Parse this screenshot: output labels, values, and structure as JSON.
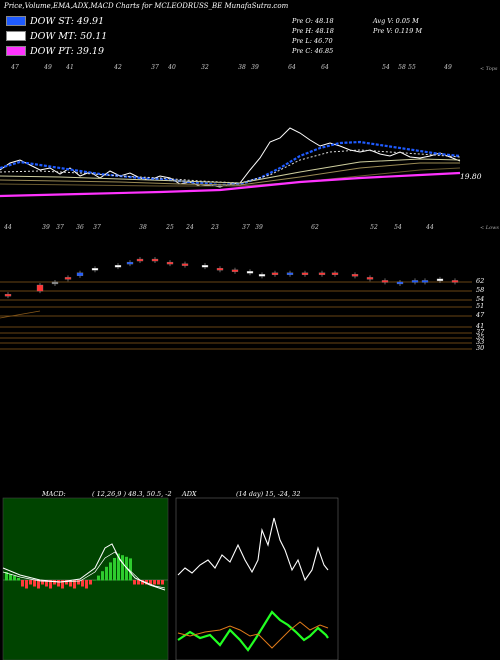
{
  "title": "Price,Volume,EMA,ADX,MACD Charts for MCLEODRUSS_BE MunafaSutra.com",
  "legend": [
    {
      "label": "DOW ST: 49.91",
      "color": "#1f5bff"
    },
    {
      "label": "DOW MT: 50.11",
      "color": "#ffffff"
    },
    {
      "label": "DOW PT: 39.19",
      "color": "#ff33ff"
    }
  ],
  "info": {
    "o": "Pre  O: 48.18",
    "h": "Pre  H: 48.18",
    "l": "Pre  L: 46.70",
    "c": "Pre  C: 46.85",
    "avgv": "Avg V: 0.05 M",
    "prev": "Pre  V: 0.119 M"
  },
  "price_top_labels": [
    "47",
    "49",
    "41",
    "42",
    "37",
    "40",
    "32",
    "38",
    "39",
    "64",
    "64",
    "54",
    "58",
    "55",
    "49"
  ],
  "price_bottom_labels": [
    "44",
    "39",
    "37",
    "36",
    "37",
    "38",
    "25",
    "24",
    "23",
    "37",
    "39",
    "62",
    "52",
    "54",
    "44"
  ],
  "corner_top": "< Tops",
  "corner_bottom": "< Lows",
  "last_value": "19.80",
  "level_labels": [
    "62",
    "58",
    "54",
    "51",
    "47",
    "41",
    "37",
    "35",
    "33",
    "30"
  ],
  "macd": {
    "label": "MACD:",
    "params": "( 12,26,9 ) 48.3, 50.5, -2"
  },
  "adx": {
    "label": "ADX",
    "params": "(14  day) 15,  -24,  32"
  },
  "chart_data": {
    "type": "line",
    "note_series": [
      "price",
      "short_ema",
      "long_ema",
      "pt_line"
    ],
    "x": [
      0,
      1,
      2,
      3,
      4,
      5,
      6,
      7,
      8,
      9,
      10,
      11,
      12,
      13,
      14,
      15,
      16,
      17,
      18,
      19,
      20,
      21,
      22,
      23,
      24,
      25,
      26,
      27,
      28,
      29
    ],
    "series": [
      {
        "name": "DOW ST",
        "color": "#1f5bff"
      },
      {
        "name": "DOW MT",
        "color": "#ffffff"
      },
      {
        "name": "DOW PT",
        "color": "#ff33ff"
      }
    ],
    "candles": [
      {
        "o": 41,
        "c": 41,
        "color": "#ff3333"
      },
      {
        "o": 47,
        "c": 43,
        "color": "#ff3333"
      },
      {
        "o": 49,
        "c": 49,
        "color": "#888888"
      },
      {
        "o": 51,
        "c": 52,
        "color": "#ff3333"
      },
      {
        "o": 53,
        "c": 55,
        "color": "#1f5bff"
      },
      {
        "o": 58,
        "c": 58,
        "color": "#ffffff"
      },
      {
        "o": 59,
        "c": 60,
        "color": "#ffffff"
      },
      {
        "o": 62,
        "c": 61,
        "color": "#1f5bff"
      },
      {
        "o": 64,
        "c": 64,
        "color": "#ff3333"
      },
      {
        "o": 64,
        "c": 64,
        "color": "#ff3333"
      },
      {
        "o": 62,
        "c": 62,
        "color": "#ff3333"
      },
      {
        "o": 61,
        "c": 61,
        "color": "#ff3333"
      },
      {
        "o": 60,
        "c": 60,
        "color": "#ffffff"
      },
      {
        "o": 58,
        "c": 58,
        "color": "#ff3333"
      },
      {
        "o": 57,
        "c": 57,
        "color": "#ff3333"
      },
      {
        "o": 56,
        "c": 55,
        "color": "#ffffff"
      },
      {
        "o": 54,
        "c": 54,
        "color": "#ffffff"
      },
      {
        "o": 54,
        "c": 55,
        "color": "#ff3333"
      },
      {
        "o": 55,
        "c": 55,
        "color": "#1f5bff"
      },
      {
        "o": 55,
        "c": 55,
        "color": "#ff3333"
      },
      {
        "o": 54,
        "c": 55,
        "color": "#ff3333"
      },
      {
        "o": 55,
        "c": 54,
        "color": "#ff3333"
      },
      {
        "o": 54,
        "c": 53,
        "color": "#ff3333"
      },
      {
        "o": 52,
        "c": 51,
        "color": "#ff3333"
      },
      {
        "o": 50,
        "c": 49,
        "color": "#ff3333"
      },
      {
        "o": 49,
        "c": 48,
        "color": "#1f5bff"
      },
      {
        "o": 49,
        "c": 50,
        "color": "#1f5bff"
      },
      {
        "o": 50,
        "c": 50,
        "color": "#1f5bff"
      },
      {
        "o": 50,
        "c": 51,
        "color": "#ffffff"
      },
      {
        "o": 50,
        "c": 50,
        "color": "#ff3333"
      }
    ],
    "ylim": [
      28,
      66
    ]
  }
}
